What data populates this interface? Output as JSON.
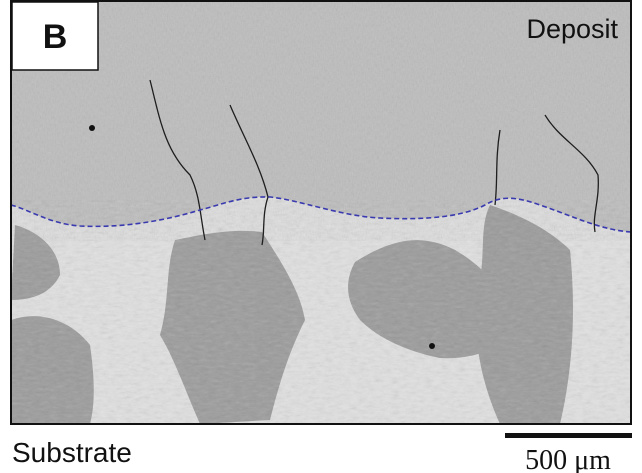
{
  "panel_label": "B",
  "labels": {
    "top": "Deposit",
    "bottom": "Substrate"
  },
  "scale_bar": {
    "label": "500 μm"
  }
}
